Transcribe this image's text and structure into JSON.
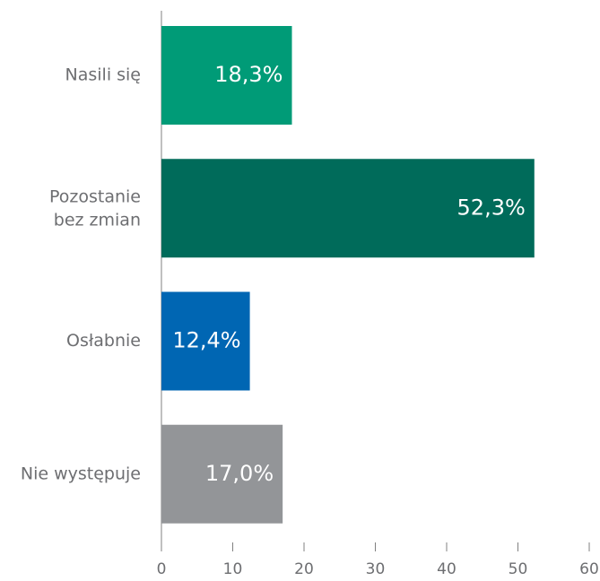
{
  "chart_data": {
    "type": "hbar",
    "categories": [
      "Nasili się",
      "Pozostanie bez zmian",
      "Osłabnie",
      "Nie występuje"
    ],
    "values": [
      18.3,
      52.3,
      12.4,
      17.0
    ],
    "value_labels": [
      "18,3%",
      "52,3%",
      "12,4%",
      "17,0%"
    ],
    "colors": [
      "#009b77",
      "#006b5a",
      "#0066b3",
      "#939598"
    ],
    "xlim": [
      0,
      60
    ],
    "xticks": [
      0,
      10,
      20,
      30,
      40,
      50,
      60
    ]
  }
}
